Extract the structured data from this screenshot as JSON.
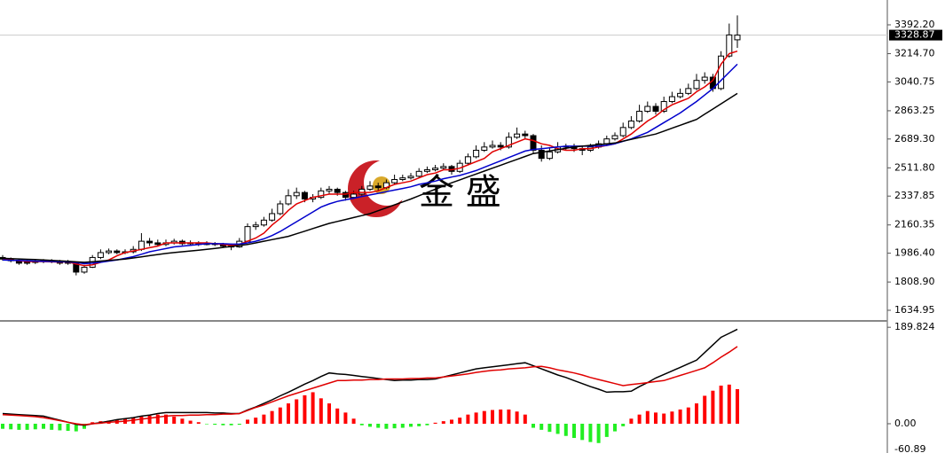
{
  "chart_data": [
    {
      "type": "candlestick",
      "watermark": "金 盛",
      "last_price": 3328.87,
      "up_color": "#ffffff",
      "down_color": "#000000",
      "ylim": [
        1569.5,
        3545
      ],
      "yticks": [
        {
          "value": 3392.2,
          "label": "3392.20"
        },
        {
          "value": 3214.7,
          "label": "3214.70"
        },
        3040.75,
        2863.25,
        {
          "value": 2689.3,
          "label": "2689.30"
        },
        {
          "value": 2511.8,
          "label": "2511.80"
        },
        2337.85,
        2160.35,
        {
          "value": 1986.4,
          "label": "1986.40"
        },
        {
          "value": 1808.9,
          "label": "1808.90"
        },
        1634.95
      ],
      "ohlc": [
        [
          1960,
          1975,
          1940,
          1950
        ],
        [
          1950,
          1960,
          1930,
          1940
        ],
        [
          1940,
          1950,
          1915,
          1925
        ],
        [
          1925,
          1945,
          1915,
          1930
        ],
        [
          1930,
          1945,
          1920,
          1935
        ],
        [
          1935,
          1950,
          1925,
          1940
        ],
        [
          1940,
          1950,
          1925,
          1935
        ],
        [
          1935,
          1945,
          1915,
          1925
        ],
        [
          1925,
          1945,
          1915,
          1930
        ],
        [
          1930,
          1935,
          1850,
          1870
        ],
        [
          1870,
          1915,
          1860,
          1900
        ],
        [
          1900,
          1975,
          1895,
          1960
        ],
        [
          1960,
          2010,
          1950,
          1990
        ],
        [
          1990,
          2015,
          1980,
          2000
        ],
        [
          2000,
          2010,
          1980,
          1990
        ],
        [
          1990,
          2010,
          1980,
          1995
        ],
        [
          1995,
          2030,
          1985,
          2010
        ],
        [
          2010,
          2110,
          2000,
          2060
        ],
        [
          2060,
          2080,
          2030,
          2050
        ],
        [
          2050,
          2070,
          2030,
          2040
        ],
        [
          2040,
          2070,
          2030,
          2050
        ],
        [
          2050,
          2075,
          2040,
          2060
        ],
        [
          2060,
          2070,
          2035,
          2045
        ],
        [
          2045,
          2065,
          2035,
          2050
        ],
        [
          2050,
          2060,
          2030,
          2040
        ],
        [
          2040,
          2060,
          2035,
          2045
        ],
        [
          2045,
          2055,
          2030,
          2040
        ],
        [
          2040,
          2050,
          2020,
          2030
        ],
        [
          2030,
          2045,
          2005,
          2025
        ],
        [
          2025,
          2080,
          2020,
          2060
        ],
        [
          2060,
          2170,
          2055,
          2150
        ],
        [
          2150,
          2180,
          2130,
          2160
        ],
        [
          2160,
          2210,
          2150,
          2190
        ],
        [
          2190,
          2260,
          2180,
          2230
        ],
        [
          2230,
          2310,
          2220,
          2290
        ],
        [
          2290,
          2380,
          2280,
          2340
        ],
        [
          2340,
          2390,
          2320,
          2360
        ],
        [
          2360,
          2370,
          2300,
          2320
        ],
        [
          2320,
          2350,
          2300,
          2330
        ],
        [
          2330,
          2390,
          2320,
          2370
        ],
        [
          2370,
          2400,
          2350,
          2380
        ],
        [
          2380,
          2390,
          2340,
          2360
        ],
        [
          2360,
          2370,
          2310,
          2330
        ],
        [
          2330,
          2370,
          2320,
          2350
        ],
        [
          2350,
          2400,
          2340,
          2380
        ],
        [
          2380,
          2430,
          2370,
          2400
        ],
        [
          2400,
          2420,
          2370,
          2390
        ],
        [
          2390,
          2440,
          2380,
          2420
        ],
        [
          2420,
          2470,
          2410,
          2440
        ],
        [
          2440,
          2470,
          2430,
          2450
        ],
        [
          2450,
          2480,
          2440,
          2460
        ],
        [
          2460,
          2510,
          2450,
          2490
        ],
        [
          2490,
          2520,
          2480,
          2500
        ],
        [
          2500,
          2530,
          2490,
          2510
        ],
        [
          2510,
          2540,
          2500,
          2520
        ],
        [
          2520,
          2530,
          2470,
          2490
        ],
        [
          2490,
          2560,
          2480,
          2540
        ],
        [
          2540,
          2600,
          2530,
          2580
        ],
        [
          2580,
          2650,
          2570,
          2620
        ],
        [
          2620,
          2670,
          2610,
          2640
        ],
        [
          2640,
          2680,
          2630,
          2650
        ],
        [
          2650,
          2670,
          2620,
          2640
        ],
        [
          2640,
          2730,
          2630,
          2700
        ],
        [
          2700,
          2760,
          2690,
          2720
        ],
        [
          2720,
          2740,
          2690,
          2710
        ],
        [
          2710,
          2720,
          2600,
          2620
        ],
        [
          2620,
          2650,
          2550,
          2570
        ],
        [
          2570,
          2640,
          2560,
          2610
        ],
        [
          2610,
          2670,
          2600,
          2640
        ],
        [
          2645,
          2660,
          2620,
          2640
        ],
        [
          2640,
          2660,
          2610,
          2630
        ],
        [
          2630,
          2650,
          2590,
          2620
        ],
        [
          2620,
          2660,
          2610,
          2640
        ],
        [
          2640,
          2680,
          2630,
          2660
        ],
        [
          2660,
          2710,
          2650,
          2690
        ],
        [
          2690,
          2730,
          2680,
          2710
        ],
        [
          2710,
          2790,
          2700,
          2760
        ],
        [
          2760,
          2830,
          2750,
          2800
        ],
        [
          2800,
          2900,
          2790,
          2860
        ],
        [
          2860,
          2920,
          2850,
          2890
        ],
        [
          2890,
          2910,
          2840,
          2860
        ],
        [
          2860,
          2950,
          2850,
          2920
        ],
        [
          2920,
          2980,
          2910,
          2950
        ],
        [
          2950,
          3000,
          2940,
          2970
        ],
        [
          2970,
          3030,
          2960,
          3000
        ],
        [
          3000,
          3090,
          2990,
          3050
        ],
        [
          3050,
          3100,
          3030,
          3070
        ],
        [
          3070,
          3090,
          2980,
          3000
        ],
        [
          3000,
          3230,
          2990,
          3200
        ],
        [
          3200,
          3400,
          3190,
          3330
        ],
        [
          3300,
          3450,
          3250,
          3328.87
        ]
      ],
      "lines": [
        {
          "color": "#e00000",
          "values": [
            1950,
            1945,
            1940,
            1935,
            1935,
            1935,
            1933,
            1932,
            1933,
            1920,
            1910,
            1915,
            1930,
            1945,
            1970,
            1990,
            2000,
            2010,
            2020,
            2030,
            2050,
            2050,
            2050,
            2050,
            2050,
            2050,
            2045,
            2040,
            2035,
            2040,
            2060,
            2080,
            2110,
            2160,
            2200,
            2250,
            2290,
            2310,
            2330,
            2340,
            2350,
            2350,
            2350,
            2360,
            2360,
            2360,
            2370,
            2390,
            2410,
            2420,
            2430,
            2450,
            2470,
            2480,
            2500,
            2500,
            2510,
            2530,
            2550,
            2570,
            2610,
            2630,
            2650,
            2670,
            2690,
            2680,
            2660,
            2650,
            2630,
            2620,
            2620,
            2630,
            2630,
            2640,
            2650,
            2660,
            2690,
            2720,
            2760,
            2800,
            2830,
            2870,
            2900,
            2920,
            2940,
            2980,
            3010,
            3050,
            3150,
            3215,
            3230
          ]
        },
        {
          "color": "#0000cc",
          "values": [
            1945,
            1943,
            1942,
            1940,
            1938,
            1936,
            1935,
            1934,
            1933,
            1928,
            1922,
            1925,
            1930,
            1938,
            1945,
            1955,
            1965,
            1980,
            1995,
            2005,
            2015,
            2025,
            2030,
            2035,
            2040,
            2045,
            2045,
            2045,
            2042,
            2043,
            2050,
            2060,
            2075,
            2095,
            2120,
            2150,
            2180,
            2210,
            2240,
            2270,
            2290,
            2305,
            2315,
            2325,
            2335,
            2345,
            2355,
            2365,
            2375,
            2385,
            2395,
            2410,
            2420,
            2430,
            2445,
            2455,
            2465,
            2480,
            2495,
            2515,
            2535,
            2555,
            2575,
            2595,
            2615,
            2625,
            2630,
            2635,
            2640,
            2645,
            2645,
            2645,
            2645,
            2645,
            2650,
            2660,
            2675,
            2690,
            2710,
            2730,
            2760,
            2790,
            2820,
            2850,
            2885,
            2920,
            2960,
            3000,
            3050,
            3100,
            3150
          ]
        },
        {
          "color": "#000000",
          "values": [
            1955,
            1953,
            1951,
            1949,
            1947,
            1945,
            1942,
            1939,
            1936,
            1933,
            1930,
            1934,
            1938,
            1942,
            1946,
            1950,
            1957,
            1964,
            1971,
            1978,
            1985,
            1990,
            1995,
            2000,
            2005,
            2010,
            2016,
            2022,
            2028,
            2034,
            2040,
            2050,
            2060,
            2070,
            2080,
            2090,
            2106,
            2122,
            2138,
            2154,
            2170,
            2182,
            2194,
            2206,
            2218,
            2230,
            2248,
            2266,
            2284,
            2302,
            2320,
            2340,
            2360,
            2380,
            2400,
            2420,
            2438,
            2456,
            2474,
            2492,
            2510,
            2528,
            2546,
            2564,
            2582,
            2600,
            2608,
            2616,
            2624,
            2632,
            2640,
            2645,
            2650,
            2655,
            2660,
            2665,
            2676,
            2687,
            2698,
            2709,
            2720,
            2738,
            2756,
            2774,
            2792,
            2810,
            2842,
            2874,
            2906,
            2938,
            2970
          ]
        }
      ]
    },
    {
      "type": "macd",
      "ylim": [
        -57.6,
        200.6
      ],
      "yticks": [
        189.824,
        {
          "value": 0,
          "label": "0.00"
        },
        -60.89
      ],
      "lines": [
        {
          "color": "#000000",
          "values": [
            20,
            19,
            18,
            17,
            16,
            15,
            11,
            7,
            3,
            -1,
            -3,
            0,
            2,
            5,
            8,
            10,
            12,
            15,
            17,
            20,
            22,
            22,
            22,
            22,
            22,
            22,
            21,
            21,
            20,
            20,
            27,
            33,
            40,
            47,
            55,
            62,
            70,
            78,
            85,
            93,
            100,
            98,
            97,
            95,
            93,
            91,
            89,
            87,
            85,
            86,
            86,
            87,
            87,
            88,
            92,
            96,
            100,
            104,
            108,
            110,
            112,
            114,
            116,
            118,
            120,
            114,
            108,
            102,
            96,
            91,
            85,
            79,
            73,
            68,
            62,
            63,
            63,
            64,
            73,
            81,
            90,
            97,
            104,
            111,
            118,
            125,
            140,
            155,
            170,
            178,
            186
          ]
        },
        {
          "color": "#e00000",
          "values": [
            18,
            17,
            16,
            15,
            14,
            12,
            9,
            6,
            3,
            0,
            -2,
            0,
            1,
            3,
            4,
            5,
            7,
            9,
            11,
            13,
            15,
            16,
            16,
            17,
            17,
            18,
            18,
            19,
            19,
            20,
            26,
            32,
            37,
            43,
            49,
            55,
            60,
            65,
            70,
            75,
            80,
            85,
            85,
            86,
            86,
            87,
            87,
            88,
            88,
            88,
            89,
            89,
            90,
            90,
            92,
            94,
            96,
            98,
            101,
            103,
            105,
            106,
            108,
            109,
            110,
            112,
            113,
            110,
            106,
            103,
            100,
            96,
            91,
            87,
            83,
            79,
            75,
            77,
            79,
            81,
            83,
            85,
            90,
            95,
            100,
            105,
            110,
            120,
            131,
            141,
            152
          ]
        }
      ],
      "histogram": {
        "up_color": "#ff0000",
        "down_color": "#22ee22",
        "values": [
          -10,
          -11,
          -12,
          -12,
          -11,
          -10,
          -12,
          -13,
          -14,
          -15,
          -10,
          3,
          5,
          6,
          8,
          10,
          12,
          14,
          16,
          18,
          18,
          14,
          10,
          6,
          3,
          -1,
          -2,
          -3,
          -3,
          -2,
          8,
          12,
          18,
          25,
          32,
          40,
          48,
          56,
          62,
          50,
          40,
          30,
          22,
          10,
          -3,
          -6,
          -8,
          -10,
          -9,
          -8,
          -6,
          -5,
          -3,
          2,
          5,
          8,
          12,
          18,
          22,
          25,
          27,
          28,
          28,
          24,
          18,
          -8,
          -12,
          -16,
          -20,
          -24,
          -28,
          -32,
          -36,
          -38,
          -26,
          -15,
          -5,
          10,
          18,
          25,
          22,
          20,
          24,
          28,
          32,
          40,
          55,
          65,
          75,
          77,
          68
        ]
      }
    }
  ]
}
